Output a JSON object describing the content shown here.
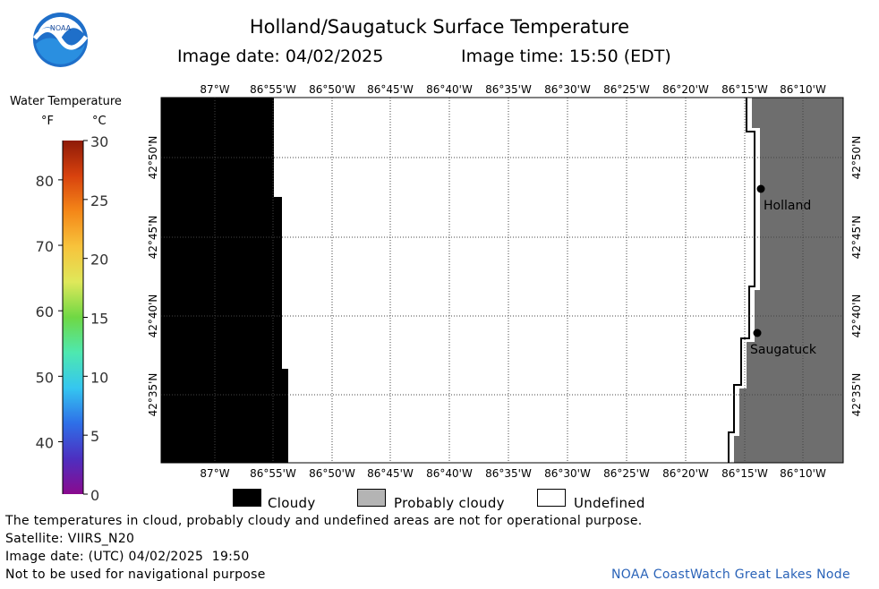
{
  "header": {
    "title": "Holland/Saugatuck Surface Temperature",
    "image_date": "Image date: 04/02/2025",
    "image_time": "Image time: 15:50 (EDT)"
  },
  "logo": {
    "text": "NOAA"
  },
  "colorbar": {
    "title": "Water Temperature",
    "unit_f": "°F",
    "unit_c": "°C",
    "f_ticks": [
      "80",
      "70",
      "60",
      "50",
      "40"
    ],
    "c_ticks": [
      "30",
      "25",
      "20",
      "15",
      "10",
      "5",
      "0"
    ],
    "range_c": [
      0,
      30
    ],
    "range_f": [
      32,
      86
    ],
    "colors": [
      "#8a0a8e",
      "#4d2fc0",
      "#2e6fe8",
      "#35c6f0",
      "#4ee8b0",
      "#6fd844",
      "#dfe85a",
      "#f7c33c",
      "#f48718",
      "#d8420e",
      "#8e1a08"
    ]
  },
  "map": {
    "lon_labels": [
      "87°W",
      "86°55'W",
      "86°50'W",
      "86°45'W",
      "86°40'W",
      "86°35'W",
      "86°30'W",
      "86°25'W",
      "86°20'W",
      "86°15'W",
      "86°10'W"
    ],
    "lat_labels": [
      "42°50'N",
      "42°45'N",
      "42°40'N",
      "42°35'N"
    ],
    "cities": [
      {
        "name": "Holland"
      },
      {
        "name": "Saugatuck"
      }
    ],
    "colors": {
      "cloudy": "#000000",
      "land": "#6e6e6e",
      "undefined": "#ffffff",
      "probably_cloudy": "#b4b4b4"
    }
  },
  "legend": [
    {
      "label": "Cloudy",
      "color": "#000000"
    },
    {
      "label": "Probably cloudy",
      "color": "#b4b4b4"
    },
    {
      "label": "Undefined",
      "color": "#ffffff"
    }
  ],
  "footer": {
    "disclaimer": "The temperatures in cloud, probably cloudy and undefined areas are not for operational purpose.",
    "satellite": "Satellite: VIIRS_N20",
    "utc_date": "Image date: (UTC) 04/02/2025  19:50",
    "nav_note": "Not to be used for navigational purpose",
    "credit": "NOAA CoastWatch Great Lakes Node"
  }
}
